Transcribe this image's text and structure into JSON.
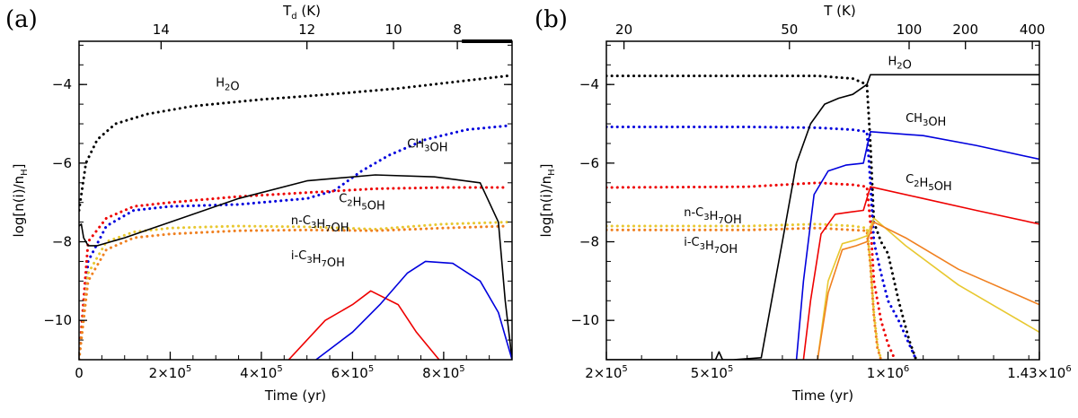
{
  "colors": {
    "black": "#000000",
    "blue": "#0000dd",
    "red": "#ee0000",
    "orange": "#f08020",
    "gold": "#e8c830"
  },
  "chart_data": [
    {
      "type": "line",
      "panel_label": "(a)",
      "xlabel": "Time (yr)",
      "ylabel": "log[n(i)/n_H]",
      "top_axis_label": "T_d (K)",
      "xlim": [
        0,
        950000
      ],
      "ylim": [
        -11,
        -2.9
      ],
      "x_ticks": [
        {
          "v": 0,
          "t": "0"
        },
        {
          "v": 200000,
          "t": "2×10^5"
        },
        {
          "v": 400000,
          "t": "4×10^5"
        },
        {
          "v": 600000,
          "t": "6×10^5"
        },
        {
          "v": 800000,
          "t": "8×10^5"
        }
      ],
      "y_ticks": [
        {
          "v": -4,
          "t": "−4"
        },
        {
          "v": -6,
          "t": "−6"
        },
        {
          "v": -8,
          "t": "−8"
        },
        {
          "v": -10,
          "t": "−10"
        }
      ],
      "top_ticks": [
        {
          "v": 14,
          "t": "14"
        },
        {
          "v": 12,
          "t": "12"
        },
        {
          "v": 10,
          "t": "10"
        },
        {
          "v": 8,
          "t": "8"
        }
      ],
      "top_tick_x": [
        {
          "t": 14,
          "x": 180000
        },
        {
          "t": 12,
          "x": 500000
        },
        {
          "t": 10,
          "x": 690000
        },
        {
          "t": 8,
          "x": 830000
        }
      ],
      "annotations": [
        {
          "text": "H2O",
          "x": 300000,
          "y": -4.05
        },
        {
          "text": "CH3OH",
          "x": 720000,
          "y": -5.6
        },
        {
          "text": "C2H5OH",
          "x": 570000,
          "y": -7.0
        },
        {
          "text": "n-C3H7OH",
          "x": 465000,
          "y": -7.55
        },
        {
          "text": "i-C3H7OH",
          "x": 465000,
          "y": -8.45
        }
      ],
      "series": [
        {
          "name": "H2O ice",
          "style": "dotted",
          "color": "black",
          "x": [
            0,
            15000,
            40000,
            80000,
            150000,
            250000,
            400000,
            550000,
            700000,
            850000,
            940000
          ],
          "y": [
            -7.2,
            -6.0,
            -5.4,
            -5.0,
            -4.75,
            -4.55,
            -4.38,
            -4.25,
            -4.1,
            -3.9,
            -3.78
          ]
        },
        {
          "name": "CH3OH ice",
          "style": "dotted",
          "color": "blue",
          "x": [
            0,
            20000,
            60000,
            120000,
            200000,
            350000,
            500000,
            560000,
            620000,
            680000,
            760000,
            850000,
            940000
          ],
          "y": [
            -11,
            -8.5,
            -7.6,
            -7.2,
            -7.1,
            -7.05,
            -6.9,
            -6.7,
            -6.2,
            -5.8,
            -5.4,
            -5.15,
            -5.05
          ]
        },
        {
          "name": "C2H5OH ice",
          "style": "dotted",
          "color": "red",
          "x": [
            0,
            20000,
            60000,
            120000,
            200000,
            350000,
            500000,
            650000,
            800000,
            940000
          ],
          "y": [
            -11,
            -8.0,
            -7.4,
            -7.1,
            -7.0,
            -6.85,
            -6.75,
            -6.65,
            -6.62,
            -6.62
          ]
        },
        {
          "name": "n-C3H7OH ice",
          "style": "dotted",
          "color": "gold",
          "x": [
            0,
            20000,
            60000,
            120000,
            200000,
            350000,
            500000,
            650000,
            800000,
            940000
          ],
          "y": [
            -11,
            -8.8,
            -8.0,
            -7.75,
            -7.65,
            -7.6,
            -7.62,
            -7.68,
            -7.55,
            -7.5
          ]
        },
        {
          "name": "i-C3H7OH ice",
          "style": "dotted",
          "color": "orange",
          "x": [
            0,
            20000,
            60000,
            120000,
            200000,
            350000,
            500000,
            650000,
            800000,
            940000
          ],
          "y": [
            -11,
            -9.0,
            -8.2,
            -7.9,
            -7.8,
            -7.72,
            -7.7,
            -7.72,
            -7.65,
            -7.6
          ]
        },
        {
          "name": "H2O gas",
          "style": "solid",
          "color": "black",
          "x": [
            0,
            5000,
            10000,
            20000,
            40000,
            100000,
            200000,
            350000,
            500000,
            650000,
            780000,
            880000,
            920000,
            935000,
            950000
          ],
          "y": [
            -7.6,
            -7.55,
            -7.9,
            -8.1,
            -8.1,
            -7.9,
            -7.5,
            -6.9,
            -6.45,
            -6.3,
            -6.35,
            -6.5,
            -7.5,
            -9.5,
            -11
          ]
        },
        {
          "name": "C2H5OH gas",
          "style": "solid",
          "color": "red",
          "x": [
            460000,
            540000,
            600000,
            640000,
            700000,
            740000,
            790000
          ],
          "y": [
            -11,
            -10.0,
            -9.6,
            -9.25,
            -9.6,
            -10.3,
            -11
          ]
        },
        {
          "name": "CH3OH gas",
          "style": "solid",
          "color": "blue",
          "x": [
            520000,
            600000,
            660000,
            720000,
            760000,
            820000,
            880000,
            920000,
            950000
          ],
          "y": [
            -11,
            -10.3,
            -9.6,
            -8.8,
            -8.5,
            -8.55,
            -9.0,
            -9.8,
            -11
          ]
        }
      ]
    },
    {
      "type": "line",
      "panel_label": "(b)",
      "xlabel": "Time (yr)",
      "ylabel": "log[n(i)/n_H]",
      "top_axis_label": "T (K)",
      "xlim": [
        200000,
        1430000
      ],
      "ylim": [
        -11,
        -2.9
      ],
      "x_ticks": [
        {
          "v": 200000,
          "t": "2×10^5"
        },
        {
          "v": 500000,
          "t": "5×10^5"
        },
        {
          "v": 1000000,
          "t": "1×10^6"
        },
        {
          "v": 1430000,
          "t": "1.43×10^6"
        }
      ],
      "y_ticks": [
        {
          "v": -4,
          "t": "−4"
        },
        {
          "v": -6,
          "t": "−6"
        },
        {
          "v": -8,
          "t": "−8"
        },
        {
          "v": -10,
          "t": "−10"
        }
      ],
      "top_ticks": [
        {
          "v": 20,
          "t": "20"
        },
        {
          "v": 50,
          "t": "50"
        },
        {
          "v": 100,
          "t": "100"
        },
        {
          "v": 200,
          "t": "200"
        },
        {
          "v": 400,
          "t": "400"
        }
      ],
      "top_tick_x": [
        {
          "t": 20,
          "x": 250000
        },
        {
          "t": 50,
          "x": 720000
        },
        {
          "t": 100,
          "x": 1060000
        },
        {
          "t": 200,
          "x": 1220000
        },
        {
          "t": 400,
          "x": 1410000
        }
      ],
      "annotations": [
        {
          "text": "H2O",
          "x": 1000000,
          "y": -3.5
        },
        {
          "text": "CH3OH",
          "x": 1050000,
          "y": -4.95
        },
        {
          "text": "C2H5OH",
          "x": 1050000,
          "y": -6.5
        },
        {
          "text": "n-C3H7OH",
          "x": 420000,
          "y": -7.35
        },
        {
          "text": "i-C3H7OH",
          "x": 420000,
          "y": -8.1
        }
      ],
      "series": [
        {
          "name": "H2O ice",
          "style": "dotted",
          "color": "black",
          "x": [
            200000,
            600000,
            800000,
            900000,
            940000,
            950000,
            960000,
            980000,
            1000000,
            1030000,
            1060000,
            1080000
          ],
          "y": [
            -3.78,
            -3.78,
            -3.78,
            -3.85,
            -4.0,
            -5.5,
            -7.5,
            -8.0,
            -8.3,
            -9.5,
            -10.5,
            -11
          ]
        },
        {
          "name": "CH3OH ice",
          "style": "dotted",
          "color": "blue",
          "x": [
            200000,
            600000,
            800000,
            900000,
            940000,
            950000,
            960000,
            980000,
            1000000,
            1030000,
            1060000,
            1080000
          ],
          "y": [
            -5.08,
            -5.08,
            -5.1,
            -5.15,
            -5.2,
            -6.5,
            -8.0,
            -8.8,
            -9.5,
            -10.0,
            -10.6,
            -11
          ]
        },
        {
          "name": "C2H5OH ice",
          "style": "dotted",
          "color": "red",
          "x": [
            200000,
            600000,
            800000,
            900000,
            940000,
            950000,
            960000,
            980000,
            1000000,
            1020000
          ],
          "y": [
            -6.62,
            -6.6,
            -6.5,
            -6.55,
            -6.6,
            -7.5,
            -9.0,
            -10.0,
            -10.6,
            -11
          ]
        },
        {
          "name": "n-C3H7OH ice",
          "style": "dotted",
          "color": "gold",
          "x": [
            200000,
            600000,
            800000,
            900000,
            940000,
            950000,
            960000,
            970000,
            980000
          ],
          "y": [
            -7.6,
            -7.6,
            -7.55,
            -7.6,
            -7.65,
            -8.5,
            -9.8,
            -10.6,
            -11
          ]
        },
        {
          "name": "i-C3H7OH ice",
          "style": "dotted",
          "color": "orange",
          "x": [
            200000,
            600000,
            800000,
            900000,
            940000,
            950000,
            960000,
            970000,
            980000
          ],
          "y": [
            -7.7,
            -7.7,
            -7.65,
            -7.7,
            -7.72,
            -8.6,
            -9.9,
            -10.7,
            -11
          ]
        },
        {
          "name": "H2O gas",
          "style": "solid",
          "color": "black",
          "x": [
            200000,
            510000,
            520000,
            530000,
            560000,
            640000,
            700000,
            740000,
            780000,
            820000,
            860000,
            900000,
            940000,
            950000,
            1430000
          ],
          "y": [
            -11,
            -11,
            -10.8,
            -11,
            -11,
            -10.95,
            -8.0,
            -6.0,
            -5.0,
            -4.5,
            -4.35,
            -4.25,
            -4.0,
            -3.75,
            -3.75
          ]
        },
        {
          "name": "CH3OH gas",
          "style": "solid",
          "color": "blue",
          "x": [
            740000,
            760000,
            790000,
            830000,
            880000,
            930000,
            950000,
            1100000,
            1250000,
            1430000
          ],
          "y": [
            -11,
            -9.0,
            -6.8,
            -6.2,
            -6.05,
            -6.0,
            -5.2,
            -5.3,
            -5.55,
            -5.9
          ]
        },
        {
          "name": "C2H5OH gas",
          "style": "solid",
          "color": "red",
          "x": [
            760000,
            780000,
            810000,
            850000,
            890000,
            930000,
            950000,
            1100000,
            1250000,
            1430000
          ],
          "y": [
            -11,
            -9.5,
            -7.8,
            -7.3,
            -7.25,
            -7.2,
            -6.6,
            -6.9,
            -7.2,
            -7.55
          ]
        },
        {
          "name": "n-C3H7OH gas",
          "style": "solid",
          "color": "gold",
          "x": [
            800000,
            830000,
            870000,
            910000,
            940000,
            960000,
            1050000,
            1200000,
            1430000
          ],
          "y": [
            -11,
            -9.0,
            -8.05,
            -7.95,
            -7.85,
            -7.4,
            -8.1,
            -9.1,
            -10.3
          ]
        },
        {
          "name": "i-C3H7OH gas",
          "style": "solid",
          "color": "orange",
          "x": [
            800000,
            830000,
            870000,
            910000,
            940000,
            960000,
            1050000,
            1200000,
            1430000
          ],
          "y": [
            -11,
            -9.3,
            -8.2,
            -8.1,
            -8.0,
            -7.5,
            -7.9,
            -8.7,
            -9.6
          ]
        }
      ]
    }
  ]
}
